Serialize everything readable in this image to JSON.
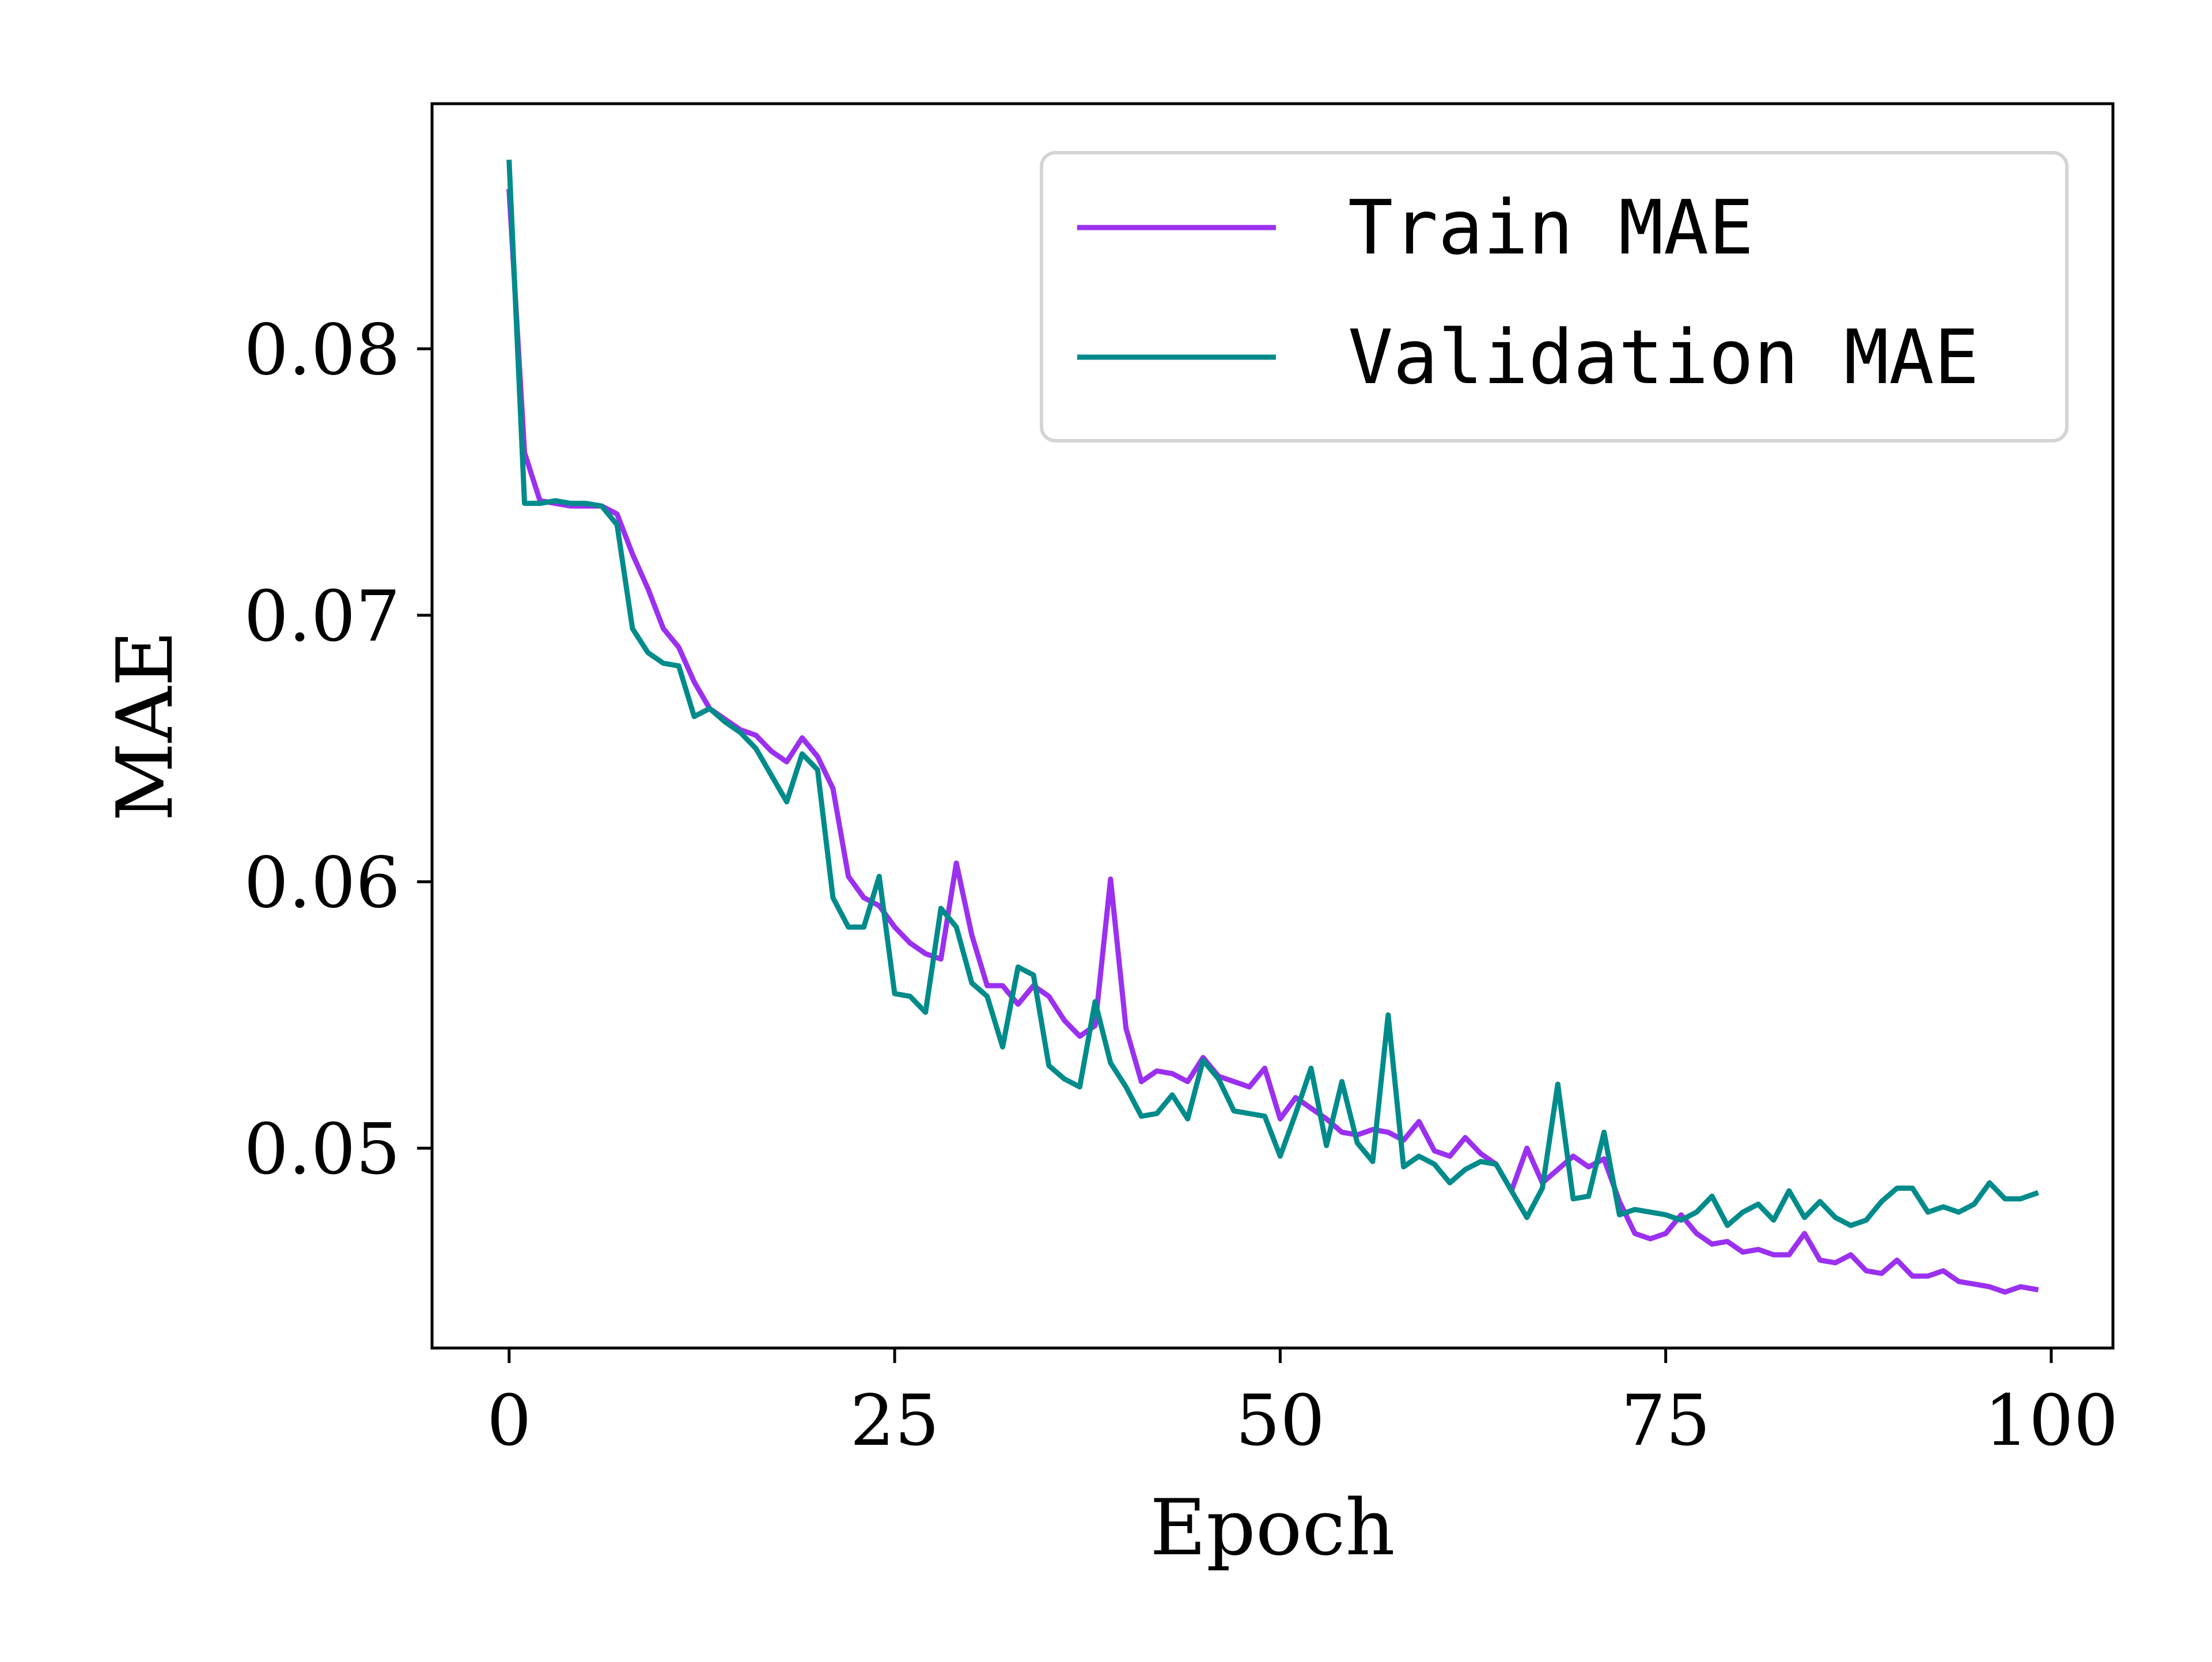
{
  "chart_data": {
    "type": "line",
    "xlabel": "Epoch",
    "ylabel": "MAE",
    "xlim": [
      -5,
      104
    ],
    "ylim": [
      0.0425,
      0.0892
    ],
    "x_ticks": [
      0,
      25,
      50,
      75,
      100
    ],
    "y_ticks": [
      0.05,
      0.06,
      0.07,
      0.08
    ],
    "x_tick_labels": [
      "0",
      "25",
      "50",
      "75",
      "100"
    ],
    "y_tick_labels": [
      "0.05",
      "0.06",
      "0.07",
      "0.08"
    ],
    "grid": false,
    "legend": {
      "position": "top-right"
    },
    "x": [
      0,
      1,
      2,
      3,
      4,
      5,
      6,
      7,
      8,
      9,
      10,
      11,
      12,
      13,
      14,
      15,
      16,
      17,
      18,
      19,
      20,
      21,
      22,
      23,
      24,
      25,
      26,
      27,
      28,
      29,
      30,
      31,
      32,
      33,
      34,
      35,
      36,
      37,
      38,
      39,
      40,
      41,
      42,
      43,
      44,
      45,
      46,
      47,
      48,
      49,
      50,
      51,
      52,
      53,
      54,
      55,
      56,
      57,
      58,
      59,
      60,
      61,
      62,
      63,
      64,
      65,
      66,
      67,
      68,
      69,
      70,
      71,
      72,
      73,
      74,
      75,
      76,
      77,
      78,
      79,
      80,
      81,
      82,
      83,
      84,
      85,
      86,
      87,
      88,
      89,
      90,
      91,
      92,
      93,
      94,
      95,
      96,
      97,
      98,
      99
    ],
    "series": [
      {
        "name": "Train MAE",
        "color": "#9b30f0",
        "values": [
          0.0859,
          0.0761,
          0.0743,
          0.0742,
          0.0741,
          0.0741,
          0.0741,
          0.0738,
          0.0723,
          0.071,
          0.0695,
          0.0688,
          0.0675,
          0.0665,
          0.0661,
          0.0657,
          0.0655,
          0.0649,
          0.0645,
          0.0654,
          0.0647,
          0.0635,
          0.0602,
          0.0594,
          0.0591,
          0.0583,
          0.0577,
          0.0573,
          0.0571,
          0.0607,
          0.058,
          0.0561,
          0.0561,
          0.0554,
          0.0561,
          0.0557,
          0.0548,
          0.0542,
          0.0546,
          0.0601,
          0.0545,
          0.0525,
          0.0529,
          0.0528,
          0.0525,
          0.0534,
          0.0527,
          0.0525,
          0.0523,
          0.053,
          0.0511,
          0.0519,
          0.0515,
          0.0511,
          0.0506,
          0.0505,
          0.0507,
          0.0506,
          0.0503,
          0.051,
          0.0499,
          0.0497,
          0.0504,
          0.0498,
          0.0494,
          0.0484,
          0.05,
          0.0487,
          0.0492,
          0.0497,
          0.0493,
          0.0496,
          0.048,
          0.0468,
          0.0466,
          0.0468,
          0.0475,
          0.0468,
          0.0464,
          0.0465,
          0.0461,
          0.0462,
          0.046,
          0.046,
          0.0468,
          0.0458,
          0.0457,
          0.046,
          0.0454,
          0.0453,
          0.0458,
          0.0452,
          0.0452,
          0.0454,
          0.045,
          0.0449,
          0.0448,
          0.0446,
          0.0448,
          0.0447
        ]
      },
      {
        "name": "Validation MAE",
        "color": "#008b8b",
        "values": [
          0.087,
          0.0742,
          0.0742,
          0.0743,
          0.0742,
          0.0742,
          0.0741,
          0.0734,
          0.0695,
          0.0686,
          0.0682,
          0.0681,
          0.0662,
          0.0665,
          0.066,
          0.0656,
          0.065,
          0.064,
          0.063,
          0.0648,
          0.0642,
          0.0594,
          0.0583,
          0.0583,
          0.0602,
          0.0558,
          0.0557,
          0.0551,
          0.059,
          0.0583,
          0.0562,
          0.0557,
          0.0538,
          0.0568,
          0.0565,
          0.0531,
          0.0526,
          0.0523,
          0.0555,
          0.0532,
          0.0523,
          0.0512,
          0.0513,
          0.052,
          0.0511,
          0.0533,
          0.0526,
          0.0514,
          0.0513,
          0.0512,
          0.0497,
          0.0513,
          0.053,
          0.0501,
          0.0525,
          0.0502,
          0.0495,
          0.055,
          0.0493,
          0.0497,
          0.0494,
          0.0487,
          0.0492,
          0.0495,
          0.0494,
          0.0484,
          0.0474,
          0.0485,
          0.0524,
          0.0481,
          0.0482,
          0.0506,
          0.0475,
          0.0477,
          0.0476,
          0.0475,
          0.0473,
          0.0476,
          0.0482,
          0.0471,
          0.0476,
          0.0479,
          0.0473,
          0.0484,
          0.0474,
          0.048,
          0.0474,
          0.0471,
          0.0473,
          0.048,
          0.0485,
          0.0485,
          0.0476,
          0.0478,
          0.0476,
          0.0479,
          0.0487,
          0.0481,
          0.0481,
          0.0483
        ]
      }
    ]
  }
}
